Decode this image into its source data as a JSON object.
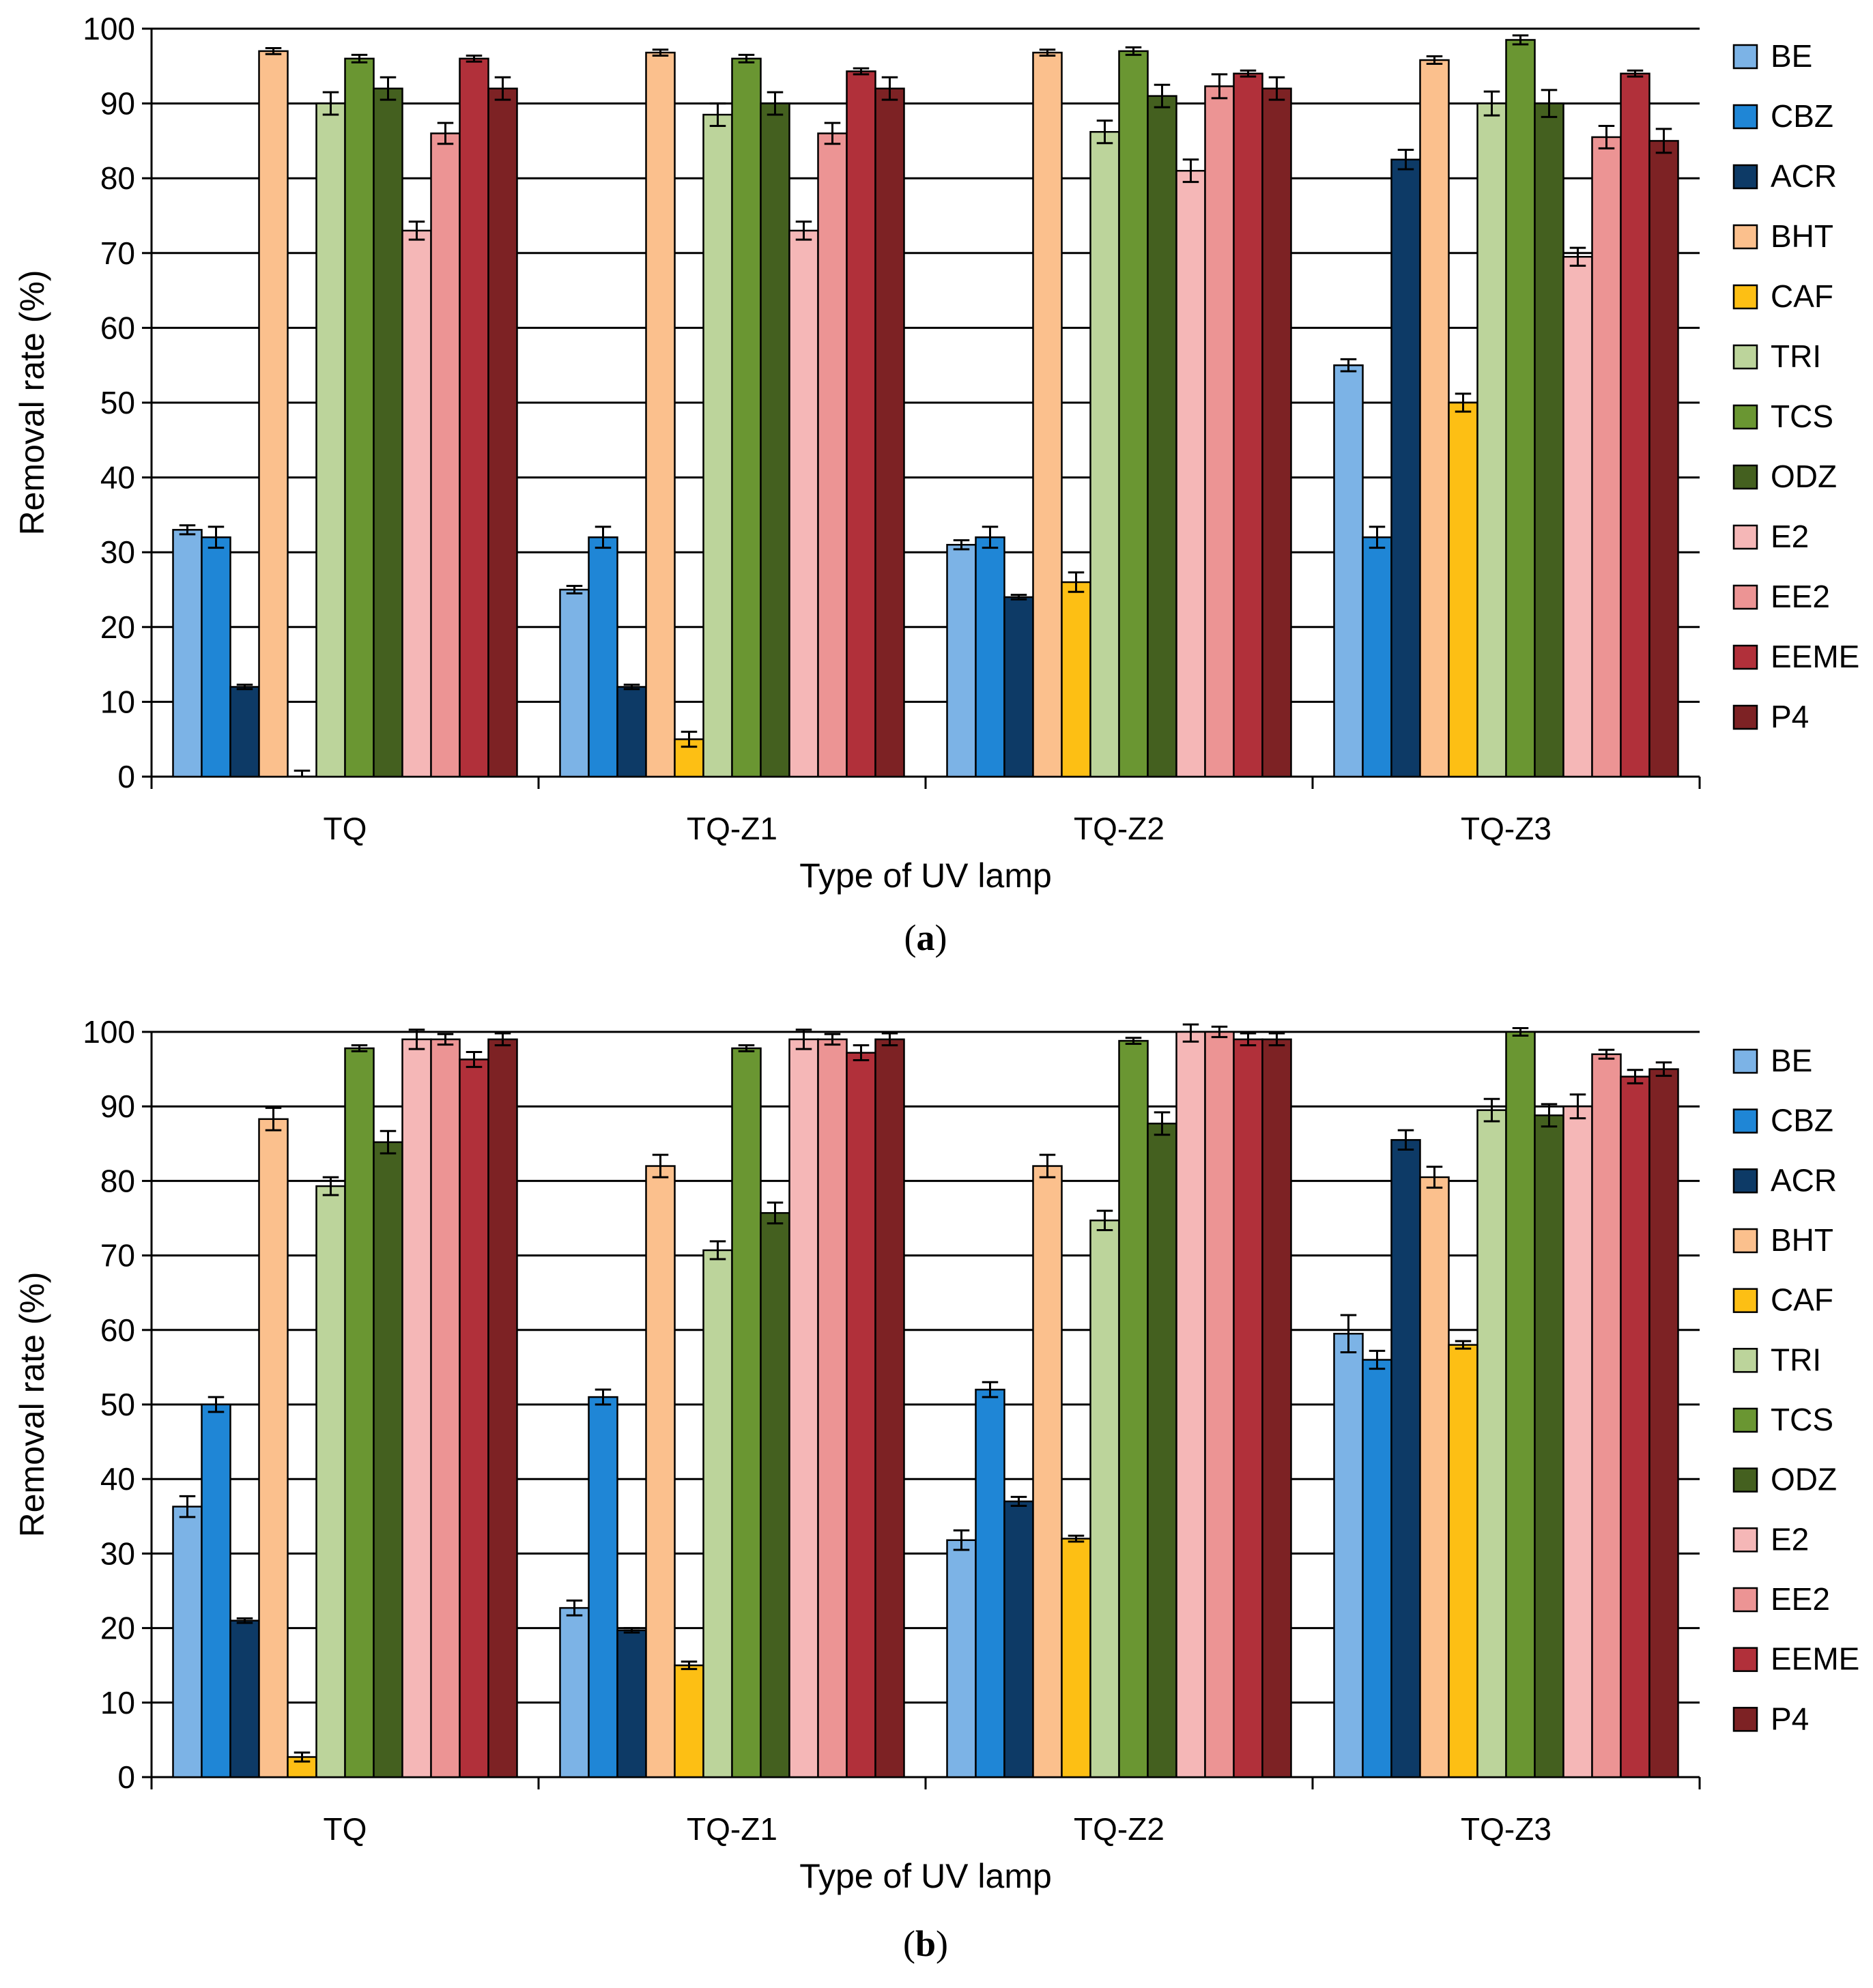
{
  "chart_data": [
    {
      "type": "bar",
      "panel_label": "a",
      "title": "",
      "xlabel": "Type of UV lamp",
      "ylabel": "Removal rate (%)",
      "ylim": [
        0,
        100
      ],
      "yticks": [
        0,
        10,
        20,
        30,
        40,
        50,
        60,
        70,
        80,
        90,
        100
      ],
      "grid": true,
      "legend_position": "right",
      "categories": [
        "TQ",
        "TQ-Z1",
        "TQ-Z2",
        "TQ-Z3"
      ],
      "series": [
        {
          "name": "BE",
          "color": "#7cb3e6",
          "values": [
            33,
            25,
            31,
            55
          ],
          "errors": [
            0.6,
            0.5,
            0.6,
            0.8
          ]
        },
        {
          "name": "CBZ",
          "color": "#1f86d6",
          "values": [
            32,
            32,
            32,
            32
          ],
          "errors": [
            1.4,
            1.4,
            1.4,
            1.4
          ]
        },
        {
          "name": "ACR",
          "color": "#0d3a66",
          "values": [
            12,
            12,
            24,
            82.5
          ],
          "errors": [
            0.3,
            0.3,
            0.3,
            1.3
          ]
        },
        {
          "name": "BHT",
          "color": "#fbc08d",
          "values": [
            97,
            96.8,
            96.8,
            95.8
          ],
          "errors": [
            0.4,
            0.4,
            0.4,
            0.5
          ]
        },
        {
          "name": "CAF",
          "color": "#fdbf14",
          "values": [
            0,
            5,
            26,
            50
          ],
          "errors": [
            0.8,
            1.0,
            1.3,
            1.2
          ]
        },
        {
          "name": "TRI",
          "color": "#bcd49b",
          "values": [
            90,
            88.5,
            86.2,
            90
          ],
          "errors": [
            1.5,
            1.5,
            1.5,
            1.6
          ]
        },
        {
          "name": "TCS",
          "color": "#6a9632",
          "values": [
            96,
            96,
            97,
            98.5
          ],
          "errors": [
            0.5,
            0.5,
            0.5,
            0.6
          ]
        },
        {
          "name": "ODZ",
          "color": "#44601f",
          "values": [
            92,
            90,
            91,
            90
          ],
          "errors": [
            1.5,
            1.5,
            1.5,
            1.8
          ]
        },
        {
          "name": "E2",
          "color": "#f5b7b7",
          "values": [
            73,
            73,
            81,
            69.5
          ],
          "errors": [
            1.2,
            1.2,
            1.5,
            1.2
          ]
        },
        {
          "name": "EE2",
          "color": "#ec9494",
          "values": [
            86,
            86,
            92.3,
            85.5
          ],
          "errors": [
            1.4,
            1.4,
            1.6,
            1.5
          ]
        },
        {
          "name": "EEME",
          "color": "#b1303a",
          "values": [
            96,
            94.3,
            94,
            94
          ],
          "errors": [
            0.4,
            0.4,
            0.4,
            0.4
          ]
        },
        {
          "name": "P4",
          "color": "#7d2224",
          "values": [
            92,
            92,
            92,
            85
          ],
          "errors": [
            1.5,
            1.5,
            1.5,
            1.6
          ]
        }
      ]
    },
    {
      "type": "bar",
      "panel_label": "b",
      "title": "",
      "xlabel": "Type of UV lamp",
      "ylabel": "Removal rate (%)",
      "ylim": [
        0,
        100
      ],
      "yticks": [
        0,
        10,
        20,
        30,
        40,
        50,
        60,
        70,
        80,
        90,
        100
      ],
      "grid": true,
      "legend_position": "right",
      "categories": [
        "TQ",
        "TQ-Z1",
        "TQ-Z2",
        "TQ-Z3"
      ],
      "series": [
        {
          "name": "BE",
          "color": "#7cb3e6",
          "values": [
            36.3,
            22.7,
            31.8,
            59.5
          ],
          "errors": [
            1.4,
            1.0,
            1.3,
            2.5
          ]
        },
        {
          "name": "CBZ",
          "color": "#1f86d6",
          "values": [
            50,
            51,
            52,
            56
          ],
          "errors": [
            1.0,
            1.0,
            1.0,
            1.2
          ]
        },
        {
          "name": "ACR",
          "color": "#0d3a66",
          "values": [
            21,
            19.7,
            37,
            85.5
          ],
          "errors": [
            0.3,
            0.3,
            0.6,
            1.3
          ]
        },
        {
          "name": "BHT",
          "color": "#fbc08d",
          "values": [
            88.3,
            82,
            82,
            80.5
          ],
          "errors": [
            1.5,
            1.5,
            1.5,
            1.4
          ]
        },
        {
          "name": "CAF",
          "color": "#fdbf14",
          "values": [
            2.7,
            15,
            32,
            58
          ],
          "errors": [
            0.6,
            0.5,
            0.4,
            0.5
          ]
        },
        {
          "name": "TRI",
          "color": "#bcd49b",
          "values": [
            79.3,
            70.7,
            74.7,
            89.5
          ],
          "errors": [
            1.2,
            1.2,
            1.3,
            1.5
          ]
        },
        {
          "name": "TCS",
          "color": "#6a9632",
          "values": [
            97.8,
            97.8,
            98.8,
            100
          ],
          "errors": [
            0.4,
            0.4,
            0.4,
            0.5
          ]
        },
        {
          "name": "ODZ",
          "color": "#44601f",
          "values": [
            85.2,
            75.7,
            87.7,
            88.8
          ],
          "errors": [
            1.5,
            1.4,
            1.5,
            1.5
          ]
        },
        {
          "name": "E2",
          "color": "#f5b7b7",
          "values": [
            99,
            99,
            100,
            90
          ],
          "errors": [
            1.3,
            1.3,
            1.3,
            1.6
          ]
        },
        {
          "name": "EE2",
          "color": "#ec9494",
          "values": [
            99,
            99,
            100,
            97
          ],
          "errors": [
            0.7,
            0.7,
            0.7,
            0.6
          ]
        },
        {
          "name": "EEME",
          "color": "#b1303a",
          "values": [
            96.3,
            97.2,
            99,
            94
          ],
          "errors": [
            1.0,
            1.0,
            0.8,
            0.9
          ]
        },
        {
          "name": "P4",
          "color": "#7d2224",
          "values": [
            99,
            99,
            99,
            95
          ],
          "errors": [
            0.8,
            0.8,
            0.8,
            0.9
          ]
        }
      ]
    }
  ]
}
